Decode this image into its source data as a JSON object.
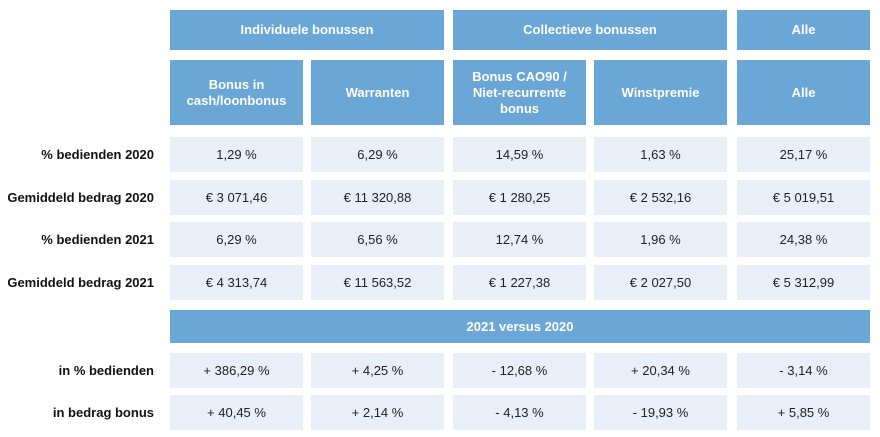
{
  "header": {
    "groups": [
      "Individuele bonussen",
      "Collectieve bonussen",
      "Alle"
    ],
    "columns": [
      "Bonus in cash/loonbonus",
      "Warranten",
      "Bonus CAO90 / Niet-recurrente bonus",
      "Winstpremie",
      "Alle"
    ]
  },
  "table": {
    "rows": [
      {
        "label": "% bedienden 2020",
        "cells": [
          "1,29 %",
          "6,29 %",
          "14,59 %",
          "1,63 %",
          "25,17 %"
        ]
      },
      {
        "label": "Gemiddeld bedrag 2020",
        "cells": [
          "€ 3 071,46",
          "€ 11 320,88",
          "€ 1 280,25",
          "€ 2 532,16",
          "€ 5 019,51"
        ]
      },
      {
        "label": "% bedienden 2021",
        "cells": [
          "6,29 %",
          "6,56 %",
          "12,74 %",
          "1,96 %",
          "24,38 %"
        ]
      },
      {
        "label": "Gemiddeld bedrag 2021",
        "cells": [
          "€ 4 313,74",
          "€ 11 563,52",
          "€ 1 227,38",
          "€ 2 027,50",
          "€ 5 312,99"
        ]
      }
    ]
  },
  "comparison": {
    "title": "2021 versus 2020",
    "rows": [
      {
        "label": "in % bedienden",
        "cells": [
          "+ 386,29 %",
          "+ 4,25 %",
          "- 12,68 %",
          "+ 20,34 %",
          "- 3,14 %"
        ]
      },
      {
        "label": "in bedrag bonus",
        "cells": [
          "+ 40,45 %",
          "+ 2,14 %",
          "- 4,13 %",
          "- 19,93 %",
          "+ 5,85 %"
        ]
      }
    ]
  }
}
